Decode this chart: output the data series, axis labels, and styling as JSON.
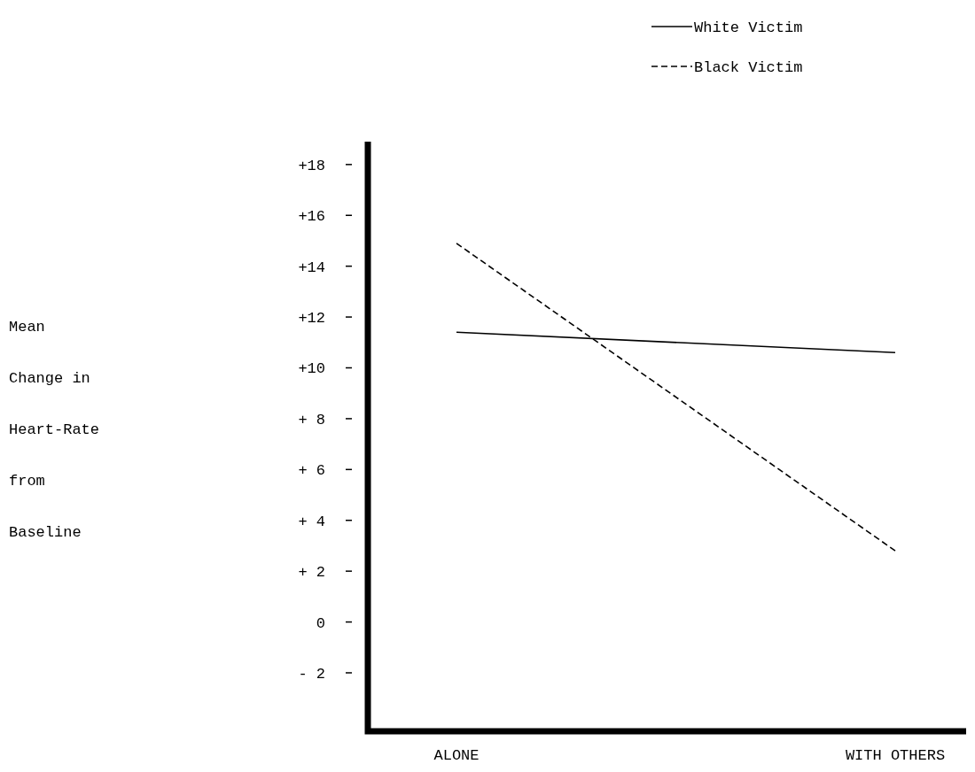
{
  "chart_data": {
    "type": "line",
    "ylabel": "Mean\nChange in\nHeart-Rate\nfrom\nBaseline",
    "categories": [
      "ALONE",
      "WITH OTHERS"
    ],
    "series": [
      {
        "name": "White Victim",
        "color": "#000000",
        "values": [
          11.4,
          10.6
        ],
        "line_style": "solid"
      },
      {
        "name": "Black Victim",
        "color": "#000000",
        "values": [
          14.9,
          2.8
        ],
        "line_style": "dashed"
      }
    ],
    "ylim": [
      -4.3,
      18.9
    ],
    "yticks": [
      {
        "value": 18,
        "label": "+18"
      },
      {
        "value": 16,
        "label": "+16"
      },
      {
        "value": 14,
        "label": "+14"
      },
      {
        "value": 12,
        "label": "+12"
      },
      {
        "value": 10,
        "label": "+10"
      },
      {
        "value": 8,
        "label": "+ 8"
      },
      {
        "value": 6,
        "label": "+ 6"
      },
      {
        "value": 4,
        "label": "+ 4"
      },
      {
        "value": 2,
        "label": "+ 2"
      },
      0,
      {
        "value": -2,
        "label": "- 2"
      }
    ],
    "legend": "top right",
    "marker": "none",
    "grid": false
  }
}
